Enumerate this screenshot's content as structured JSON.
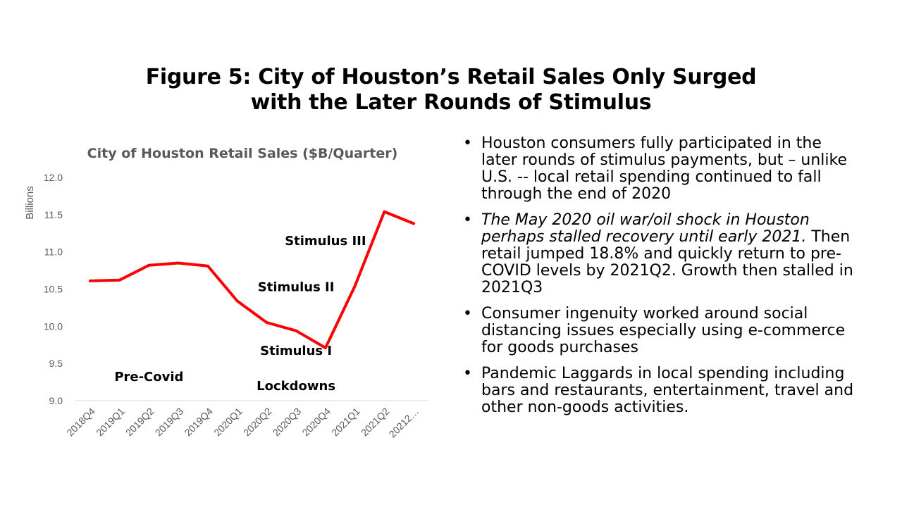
{
  "slide": {
    "title_line1": "Figure 5: City of Houston’s Retail Sales Only Surged",
    "title_line2": "with the Later Rounds of Stimulus"
  },
  "bullets": [
    {
      "text": "Houston consumers fully participated in the later rounds of stimulus payments, but – unlike U.S. -- local retail spending continued to fall through the end of 2020"
    },
    {
      "italic": "The May 2020 oil war/oil shock in Houston perhaps stalled recovery until early 2021.",
      "text": " Then retail jumped 18.8% and quickly return to pre-COVID levels by 2021Q2. Growth then stalled in 2021Q3"
    },
    {
      "text": "Consumer ingenuity worked around social distancing issues especially using e-commerce for goods purchases"
    },
    {
      "text": "Pandemic Laggards in local spending including bars and restaurants, entertainment, travel and other non-goods activities."
    }
  ],
  "chart_data": {
    "type": "line",
    "title": "City of Houston Retail Sales ($B/Quarter)",
    "ylabel": "Billions",
    "xlabel": "",
    "categories": [
      "2018Q4",
      "2019Q1",
      "2019Q2",
      "2019Q3",
      "2019Q4",
      "2020Q1",
      "2020Q2",
      "2020Q3",
      "2020Q4",
      "2021Q1",
      "2021Q2",
      "20212…"
    ],
    "series": [
      {
        "values": [
          10.61,
          10.62,
          10.82,
          10.85,
          10.81,
          10.34,
          10.05,
          9.94,
          9.71,
          10.54,
          11.54,
          11.38
        ]
      }
    ],
    "ylim": [
      9.0,
      12.0
    ],
    "yticks": [
      "9.0",
      "9.5",
      "10.0",
      "10.5",
      "11.0",
      "11.5",
      "12.0"
    ],
    "line_color": "#ff0000",
    "grid": false,
    "annotations": [
      {
        "text": "Pre-Covid",
        "x": "2019Q2",
        "y": 9.32
      },
      {
        "text": "Lockdowns",
        "x": "2020Q3",
        "y": 9.2
      },
      {
        "text": "Stimulus I",
        "x": "2020Q3",
        "y": 9.67
      },
      {
        "text": "Stimulus II",
        "x": "2020Q3",
        "y": 10.53
      },
      {
        "text": "Stimulus III",
        "x": "2020Q4",
        "y": 11.15
      }
    ]
  }
}
